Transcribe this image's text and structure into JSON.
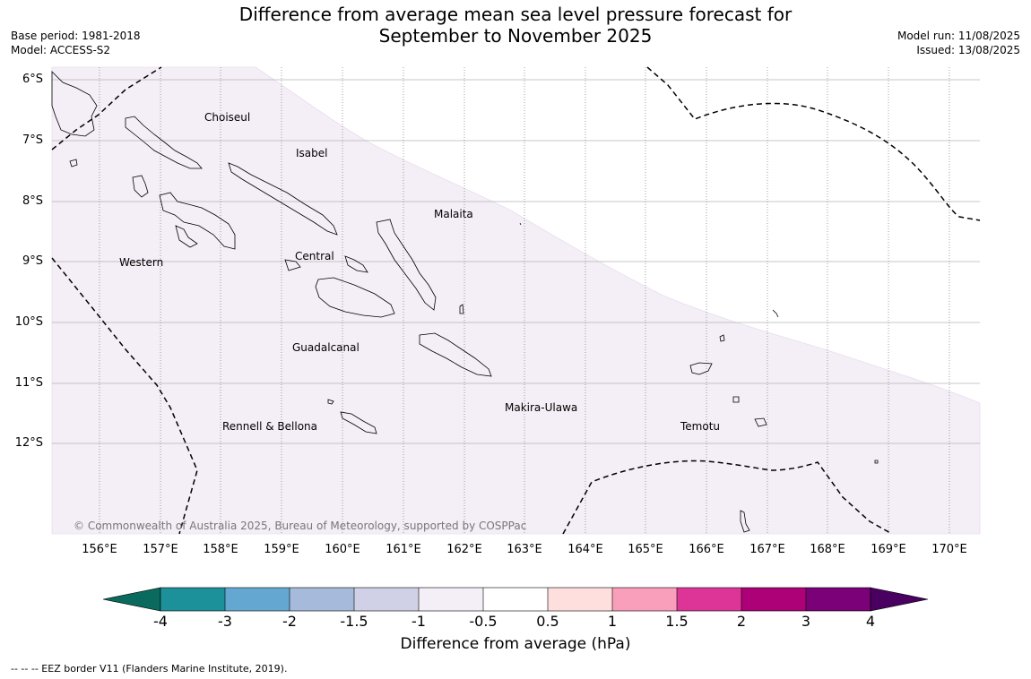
{
  "title": {
    "line1": "Difference from average mean sea level pressure forecast for",
    "line2": "September to November 2025"
  },
  "meta_left": {
    "base_period": "Base period: 1981-2018",
    "model": "Model: ACCESS-S2"
  },
  "meta_right": {
    "model_run": "Model run: 11/08/2025",
    "issued": "Issued: 13/08/2025"
  },
  "map": {
    "lat_labels": [
      "6°S",
      "7°S",
      "8°S",
      "9°S",
      "10°S",
      "11°S",
      "12°S"
    ],
    "lon_labels": [
      "156°E",
      "157°E",
      "158°E",
      "159°E",
      "160°E",
      "161°E",
      "162°E",
      "163°E",
      "164°E",
      "165°E",
      "166°E",
      "167°E",
      "168°E",
      "169°E",
      "170°E"
    ],
    "regions": [
      {
        "name": "Choiseul"
      },
      {
        "name": "Isabel"
      },
      {
        "name": "Malaita"
      },
      {
        "name": "Western"
      },
      {
        "name": "Central"
      },
      {
        "name": "Guadalcanal"
      },
      {
        "name": "Makira-Ulawa"
      },
      {
        "name": "Rennell & Bellona"
      },
      {
        "name": "Temotu"
      }
    ],
    "copyright": "© Commonwealth of Australia 2025, Bureau of Meteorology, supported by COSPPac",
    "shading_color": "#f4eef6"
  },
  "colorbar": {
    "title": "Difference from average (hPa)",
    "labels": [
      "-4",
      "-3",
      "-2",
      "-1.5",
      "-1",
      "-0.5",
      "0.5",
      "1",
      "1.5",
      "2",
      "3",
      "4"
    ],
    "colors": [
      "#0a6a5e",
      "#1d9199",
      "#64a8d1",
      "#a6bbdb",
      "#d0d1e6",
      "#f4eef6",
      "#ffffff",
      "#ffdede",
      "#f99fbc",
      "#dd3597",
      "#ad0178",
      "#7a0177",
      "#4a0060"
    ]
  },
  "footer": "--  --  -- EEZ border V11 (Flanders Marine Institute, 2019)."
}
